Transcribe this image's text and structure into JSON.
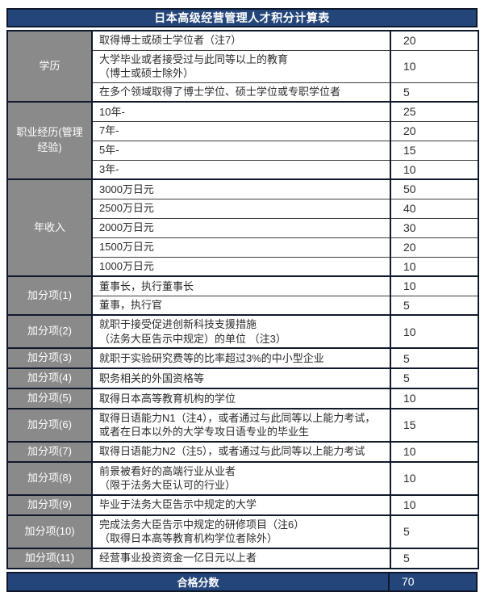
{
  "colors": {
    "navy": "#24457A",
    "navy_border": "#10182B",
    "category_gray": "#8A8A8A",
    "inner_border": "#3C3C3C",
    "text": "#2B2B2B"
  },
  "table": {
    "title": "日本高级经营管理人才积分计算表",
    "footer": {
      "label": "合格分数",
      "points": "70"
    },
    "sections": [
      {
        "category": "学历",
        "rows": [
          {
            "lines": [
              "取得博士或硕士学位者（注7）"
            ],
            "points": "20"
          },
          {
            "lines": [
              "大学毕业或者接受过与此同等以上的教育",
              "（博士或硕士除外）"
            ],
            "points": "10"
          },
          {
            "lines": [
              "在多个领域取得了博士学位、硕士学位或专职学位者"
            ],
            "points": "5"
          }
        ]
      },
      {
        "category": "职业经历(管理经验)",
        "rows": [
          {
            "lines": [
              "10年-"
            ],
            "points": "25"
          },
          {
            "lines": [
              "7年-"
            ],
            "points": "20"
          },
          {
            "lines": [
              "5年-"
            ],
            "points": "15"
          },
          {
            "lines": [
              "3年-"
            ],
            "points": "10"
          }
        ]
      },
      {
        "category": "年收入",
        "rows": [
          {
            "lines": [
              "3000万日元"
            ],
            "points": "50"
          },
          {
            "lines": [
              "2500万日元"
            ],
            "points": "40"
          },
          {
            "lines": [
              "2000万日元"
            ],
            "points": "30"
          },
          {
            "lines": [
              "1500万日元"
            ],
            "points": "20"
          },
          {
            "lines": [
              "1000万日元"
            ],
            "points": "10"
          }
        ]
      },
      {
        "category": "加分项(1)",
        "rows": [
          {
            "lines": [
              "董事长，执行董事长"
            ],
            "points": "10"
          },
          {
            "lines": [
              "董事，执行官"
            ],
            "points": "5"
          }
        ]
      },
      {
        "category": "加分项(2)",
        "rows": [
          {
            "lines": [
              "就职于接受促进创新科技支援措施",
              "（法务大臣告示中规定）的单位 （注3）"
            ],
            "points": "10"
          }
        ]
      },
      {
        "category": "加分项(3)",
        "rows": [
          {
            "lines": [
              "就职于实验研究费等的比率超过3%的中小型企业"
            ],
            "points": "5"
          }
        ]
      },
      {
        "category": "加分项(4)",
        "rows": [
          {
            "lines": [
              "职务相关的外国资格等"
            ],
            "points": "5"
          }
        ]
      },
      {
        "category": "加分项(5)",
        "rows": [
          {
            "lines": [
              "取得日本高等教育机构的学位"
            ],
            "points": "10"
          }
        ]
      },
      {
        "category": "加分项(6)",
        "rows": [
          {
            "lines": [
              "取得日语能力N1（注4），或者通过与此同等以上能力考试，",
              "或者在日本以外的大学专攻日语专业的毕业生"
            ],
            "points": "15"
          }
        ]
      },
      {
        "category": "加分项(7)",
        "rows": [
          {
            "lines": [
              "取得日语能力N2（注5），或者通过与此同等以上能力考试"
            ],
            "points": "10"
          }
        ]
      },
      {
        "category": "加分项(8)",
        "rows": [
          {
            "lines": [
              "前景被看好的高端行业从业者",
              "（限于法务大臣认可的行业）"
            ],
            "points": "10"
          }
        ]
      },
      {
        "category": "加分项(9)",
        "rows": [
          {
            "lines": [
              "毕业于法务大臣告示中规定的大学"
            ],
            "points": "10"
          }
        ]
      },
      {
        "category": "加分项(10)",
        "rows": [
          {
            "lines": [
              "完成法务大臣告示中规定的研修项目（注6）",
              "（取得日本高等教育机构学位者除外）"
            ],
            "points": "5"
          }
        ]
      },
      {
        "category": "加分项(11)",
        "rows": [
          {
            "lines": [
              "经营事业投资资金一亿日元以上者"
            ],
            "points": "5"
          }
        ]
      }
    ]
  }
}
